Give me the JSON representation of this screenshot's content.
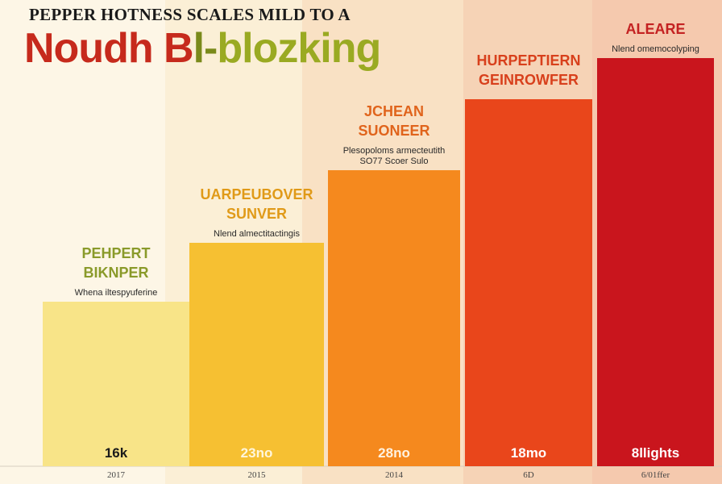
{
  "header": {
    "title_top": "PEPPER HOTNESS SCALES MILD TO A",
    "title_main_a": "Noudh B",
    "title_main_b": "l-",
    "title_main_c": "blozking"
  },
  "chart_data": {
    "type": "bar",
    "categories": [
      "2017",
      "2015",
      "2014",
      "6D",
      "6/01ffer"
    ],
    "values": [
      204,
      277,
      367,
      455,
      506
    ],
    "value_labels": [
      "16k",
      "23no",
      "28no",
      "18mo",
      "8llights"
    ],
    "annotations": [
      {
        "title_lines": [
          "PEHPERT",
          "BIKNPER"
        ],
        "subtitle_lines": [
          "Whena iltespyuferine"
        ]
      },
      {
        "title_lines": [
          "UARPEUBOVER",
          "SUNVER"
        ],
        "subtitle_lines": [
          "Nlend almectitactingis"
        ]
      },
      {
        "title_lines": [
          "JCHEAN",
          "SUONEER"
        ],
        "subtitle_lines": [
          "Plesopoloms armecteutith",
          "SO77 Scoer Sulo"
        ]
      },
      {
        "title_lines": [
          "HURPEPTIERN",
          "GEINROWFER"
        ],
        "subtitle_lines": []
      },
      {
        "title_lines": [
          "ALEARE"
        ],
        "subtitle_lines": [
          "Nlend omemocolyping"
        ]
      }
    ],
    "colors": [
      "#f8e488",
      "#f6c032",
      "#f5891e",
      "#e9461b",
      "#c9151d"
    ],
    "label_colors": [
      "#8a9a2a",
      "#e09a18",
      "#e0641c",
      "#d8401c",
      "#c42222"
    ],
    "value_label_colors": [
      "#1a1a1a",
      "#fff6dc",
      "#fff2e0",
      "#ffffff",
      "#ffffff"
    ],
    "ylim": [
      0,
      560
    ],
    "grid": false,
    "legend": "none"
  }
}
